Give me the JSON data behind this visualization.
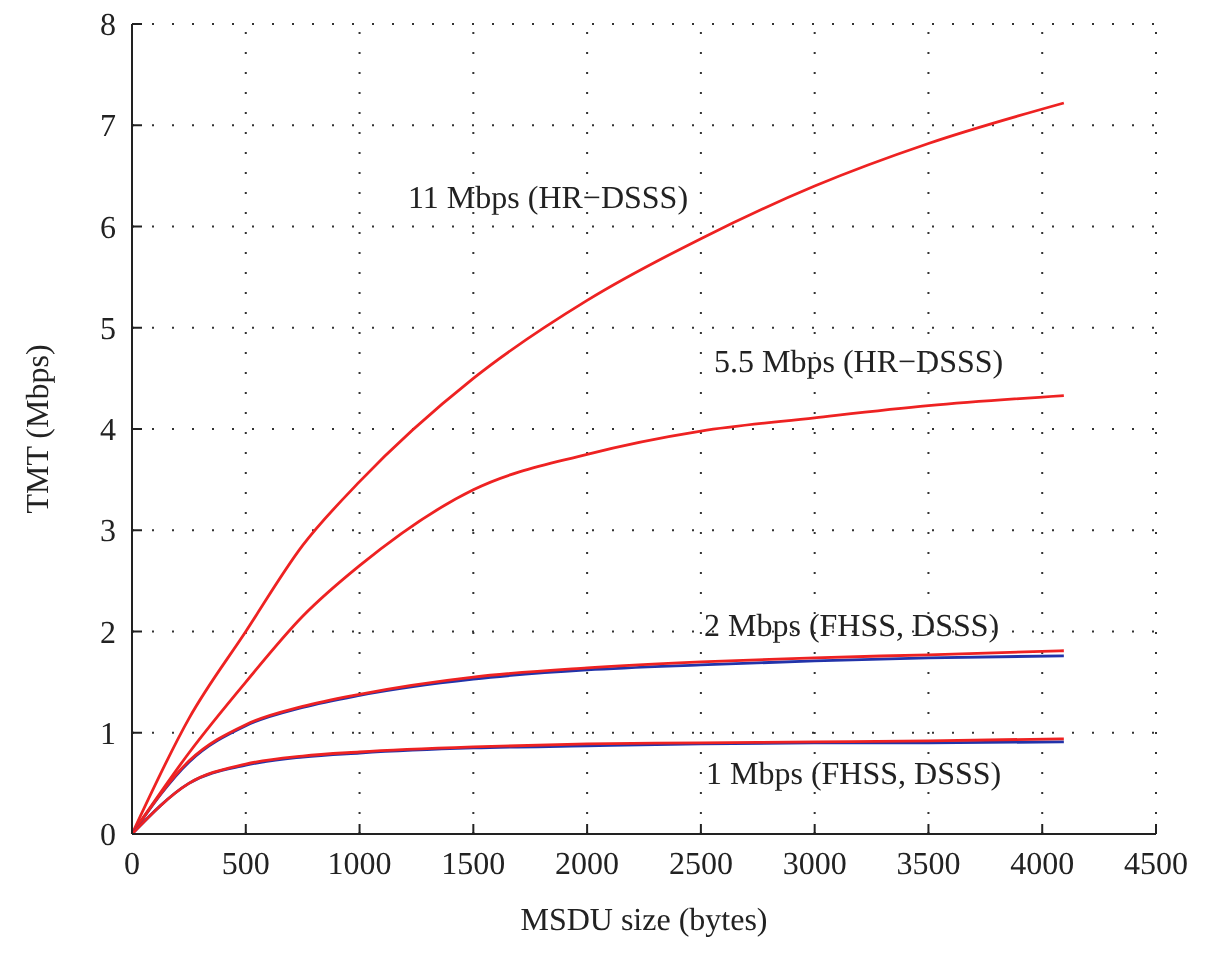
{
  "chart_data": {
    "type": "line",
    "xlabel": "MSDU size (bytes)",
    "ylabel": "TMT (Mbps)",
    "xlim": [
      0,
      4500
    ],
    "xticks": [
      0,
      500,
      1000,
      1500,
      2000,
      2500,
      3000,
      3500,
      4000,
      4500
    ],
    "ylim": [
      0,
      8
    ],
    "yticks": [
      0,
      1,
      2,
      3,
      4,
      5,
      6,
      7,
      8
    ],
    "grid": true,
    "line_style": "solid",
    "x": [
      0,
      250,
      500,
      750,
      1000,
      1500,
      2000,
      2500,
      3000,
      3500,
      4095
    ],
    "series": [
      {
        "color": "#ee2222",
        "values": [
          0,
          1.14,
          2.0,
          2.85,
          3.48,
          4.5,
          5.27,
          5.88,
          6.4,
          6.82,
          7.22
        ]
      },
      {
        "color": "#ee2222",
        "values": [
          0,
          0.8,
          1.5,
          2.15,
          2.65,
          3.4,
          3.75,
          3.98,
          4.11,
          4.23,
          4.33
        ]
      },
      {
        "color": "#2233aa",
        "values": [
          0,
          0.71,
          1.07,
          1.25,
          1.37,
          1.53,
          1.62,
          1.67,
          1.71,
          1.74,
          1.76
        ]
      },
      {
        "color": "#ee2222",
        "values": [
          0,
          0.72,
          1.08,
          1.26,
          1.38,
          1.55,
          1.64,
          1.7,
          1.74,
          1.77,
          1.81
        ]
      },
      {
        "color": "#2233aa",
        "values": [
          0,
          0.5,
          0.68,
          0.76,
          0.8,
          0.85,
          0.87,
          0.89,
          0.9,
          0.9,
          0.91
        ]
      },
      {
        "color": "#ee2222",
        "values": [
          0,
          0.5,
          0.69,
          0.77,
          0.81,
          0.86,
          0.89,
          0.9,
          0.91,
          0.92,
          0.94
        ]
      }
    ],
    "annotations": [
      "11 Mbps (HR−DSSS)",
      "5.5 Mbps (HR−DSSS)",
      "2 Mbps (FHSS, DSSS)",
      "1 Mbps (FHSS, DSSS)"
    ]
  }
}
